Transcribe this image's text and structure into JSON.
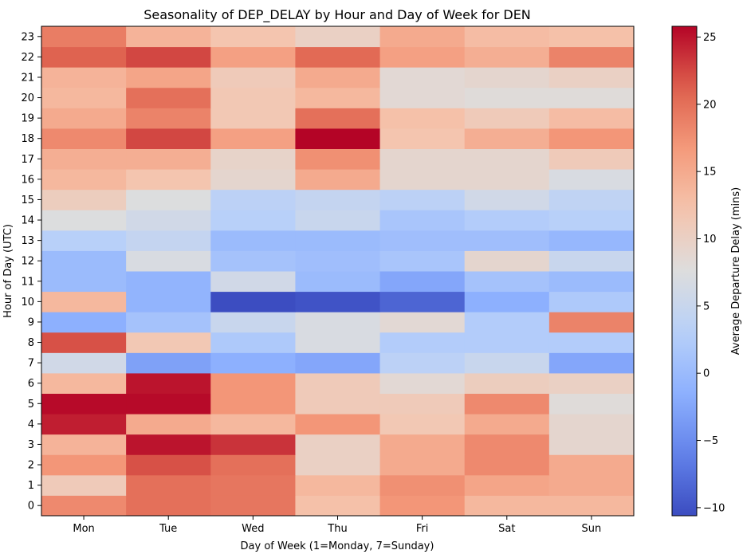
{
  "chart_data": {
    "type": "heatmap",
    "title": "Seasonality of DEP_DELAY by Hour and Day of Week for DEN",
    "xlabel": "Day of Week (1=Monday, 7=Sunday)",
    "ylabel": "Hour of Day (UTC)",
    "colorbar_label": "Average Departure Delay (mins)",
    "colormap": "coolwarm",
    "vmin": -10.6,
    "vmax": 25.8,
    "colorbar_ticks": [
      -10,
      -5,
      0,
      5,
      10,
      15,
      20,
      25
    ],
    "x_categories": [
      "Mon",
      "Tue",
      "Wed",
      "Thu",
      "Fri",
      "Sat",
      "Sun"
    ],
    "y_categories": [
      "0",
      "1",
      "2",
      "3",
      "4",
      "5",
      "6",
      "7",
      "8",
      "9",
      "10",
      "11",
      "12",
      "13",
      "14",
      "15",
      "16",
      "17",
      "18",
      "19",
      "20",
      "21",
      "22",
      "23"
    ],
    "values": [
      [
        18,
        20,
        19.5,
        12.5,
        17,
        13.5,
        13.5
      ],
      [
        11,
        20,
        19.5,
        13.5,
        17.5,
        15.5,
        15
      ],
      [
        17,
        22,
        20,
        10,
        15,
        18,
        15
      ],
      [
        14,
        25,
        23.5,
        10,
        15,
        18,
        9
      ],
      [
        24.5,
        15,
        13.5,
        17,
        11.5,
        15,
        9
      ],
      [
        25.5,
        25.5,
        17,
        11,
        11,
        18,
        8
      ],
      [
        13.5,
        25,
        17,
        11,
        8.5,
        10.5,
        10
      ],
      [
        6,
        -3,
        -1.5,
        -2.5,
        3.5,
        5,
        -2.5
      ],
      [
        22,
        11.5,
        2,
        7,
        2.5,
        2.5,
        2.5
      ],
      [
        -1.5,
        1,
        5,
        7,
        8.5,
        2.5,
        18.5
      ],
      [
        13.5,
        -1,
        -10.5,
        -10,
        -8.5,
        -1.5,
        2
      ],
      [
        0,
        -1,
        6,
        0,
        -2.5,
        1,
        0
      ],
      [
        0,
        7,
        1,
        0.5,
        1.5,
        9,
        5
      ],
      [
        3,
        4.5,
        0,
        0,
        0.5,
        0.5,
        -0.5
      ],
      [
        7.5,
        6,
        3,
        5,
        1.5,
        2.5,
        3
      ],
      [
        10.5,
        7.5,
        3.5,
        4.5,
        3.5,
        6,
        4
      ],
      [
        13.5,
        12,
        9,
        15,
        9,
        9,
        7
      ],
      [
        14.5,
        14.5,
        9.5,
        17.5,
        9,
        9,
        11
      ],
      [
        18,
        22.5,
        16,
        25.8,
        12,
        14.5,
        17
      ],
      [
        15,
        18.5,
        11.5,
        20,
        12.5,
        11,
        13
      ],
      [
        13.5,
        20,
        11.5,
        13.5,
        8.5,
        8,
        8
      ],
      [
        14,
        15.5,
        11,
        15,
        8.5,
        9,
        10
      ],
      [
        21,
        22.5,
        16,
        20.5,
        16,
        14.5,
        18.5
      ],
      [
        19,
        14,
        12,
        10,
        15,
        13,
        12.5
      ]
    ]
  }
}
